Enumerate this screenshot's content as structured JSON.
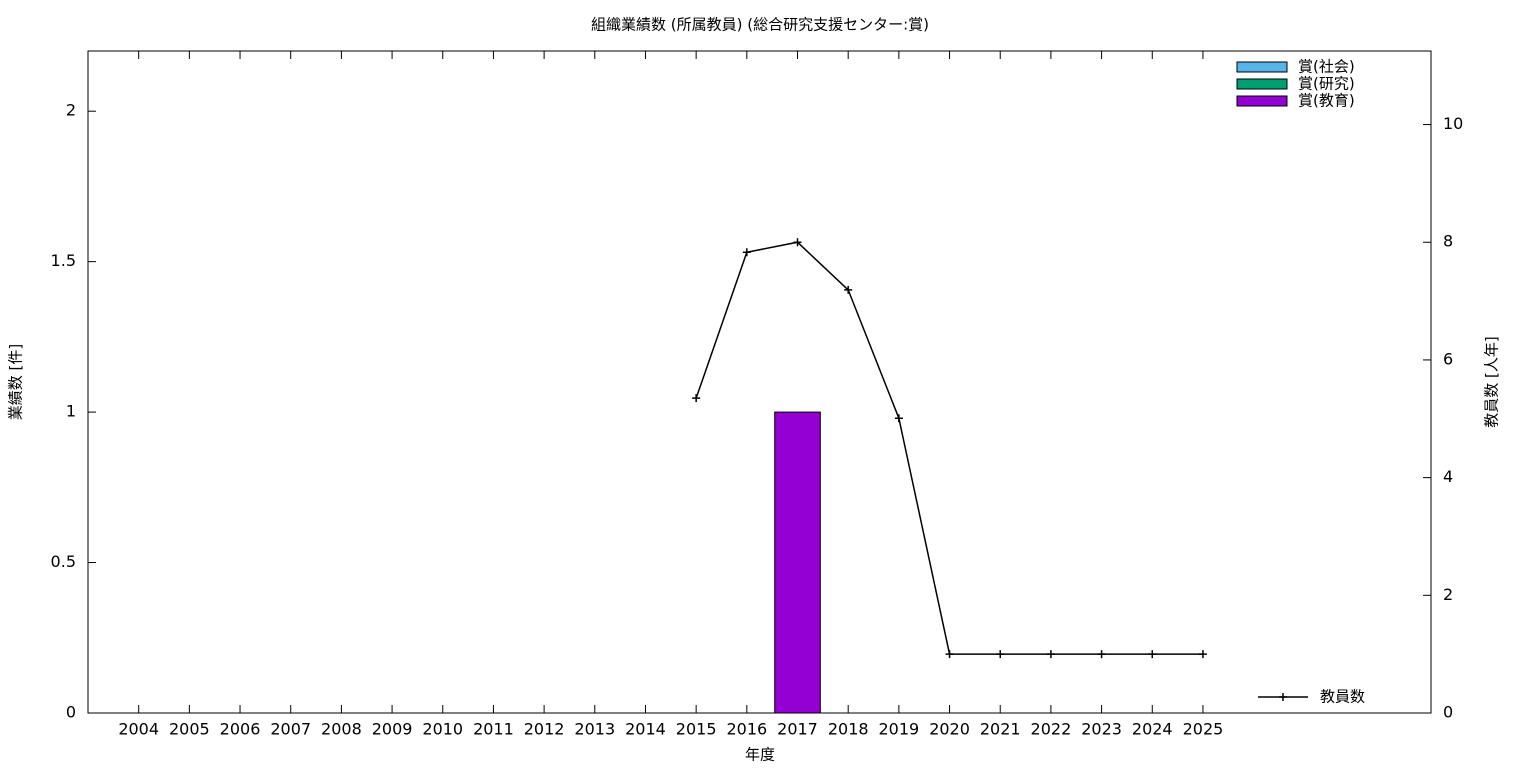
{
  "chart_data": {
    "type": "bar",
    "title": "組織業績数 (所属教員) (総合研究支援センター:賞)",
    "x_label": "年度",
    "y_label": "業績数 [件]",
    "y2_label": "教員数 [人年]",
    "x": [
      2004,
      2005,
      2006,
      2007,
      2008,
      2009,
      2010,
      2011,
      2012,
      2013,
      2014,
      2015,
      2016,
      2017,
      2018,
      2019,
      2020,
      2021,
      2022,
      2023,
      2024,
      2025
    ],
    "xlim": [
      2003,
      2029.5
    ],
    "ylim": [
      0,
      2.2
    ],
    "yticks": [
      0,
      0.5,
      1,
      1.5,
      2
    ],
    "y2lim": [
      0,
      11.25
    ],
    "y2ticks": [
      0,
      2,
      4,
      6,
      8,
      10
    ],
    "stacked": true,
    "series": [
      {
        "name": "賞(社会)",
        "type": "bar",
        "color": "#56b4e9",
        "values": [
          0,
          0,
          0,
          0,
          0,
          0,
          0,
          0,
          0,
          0,
          0,
          0,
          0,
          0,
          0,
          0,
          0,
          0,
          0,
          0,
          0,
          0
        ]
      },
      {
        "name": "賞(研究)",
        "type": "bar",
        "color": "#009e73",
        "values": [
          0,
          0,
          0,
          0,
          0,
          0,
          0,
          0,
          0,
          0,
          0,
          0,
          0,
          0,
          0,
          0,
          0,
          0,
          0,
          0,
          0,
          0
        ]
      },
      {
        "name": "賞(教育)",
        "type": "bar",
        "color": "#9400d3",
        "values": [
          0,
          0,
          0,
          0,
          0,
          0,
          0,
          0,
          0,
          0,
          0,
          0,
          0,
          1,
          0,
          0,
          0,
          0,
          0,
          0,
          0,
          0
        ]
      },
      {
        "name": "教員数",
        "type": "line",
        "axis": "y2",
        "color": "#000000",
        "values": [
          null,
          null,
          null,
          null,
          null,
          null,
          null,
          null,
          null,
          null,
          null,
          5.35,
          7.83,
          8.0,
          7.19,
          5.01,
          1,
          1,
          1,
          1,
          1,
          1
        ]
      }
    ]
  }
}
